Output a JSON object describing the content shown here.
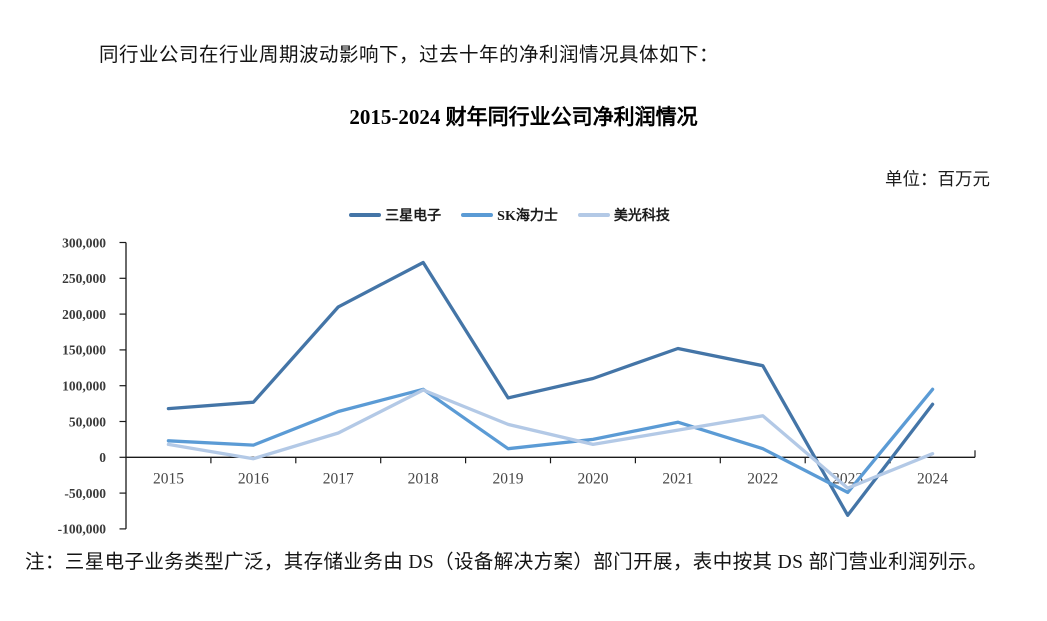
{
  "page": {
    "intro_text": "同行业公司在行业周期波动影响下，过去十年的净利润情况具体如下：",
    "chart_title": "2015-2024 财年同行业公司净利润情况",
    "unit_label": "单位：百万元",
    "note_text": "注：三星电子业务类型广泛，其存储业务由 DS（设备解决方案）部门开展，表中按其 DS 部门营业利润列示。"
  },
  "colors": {
    "samsung_line": "#4475A7",
    "skhynix_line": "#5B9BD5",
    "micron_line": "#B3C9E6",
    "axis_line": "#1a1a1a",
    "tick_text": "#3a3a3a"
  },
  "chart_data": {
    "type": "line",
    "title": "2015-2024 财年同行业公司净利润情况",
    "unit": "百万元",
    "categories": [
      "2015",
      "2016",
      "2017",
      "2018",
      "2019",
      "2020",
      "2021",
      "2022",
      "2023",
      "2024"
    ],
    "series": [
      {
        "name": "三星电子",
        "color": "#4475A7",
        "values": [
          68000,
          77000,
          210000,
          272000,
          83000,
          110000,
          152000,
          128000,
          -81000,
          74000
        ]
      },
      {
        "name": "SK海力士",
        "color": "#5B9BD5",
        "values": [
          23000,
          17000,
          64000,
          95000,
          12000,
          25000,
          49000,
          12000,
          -49000,
          95000
        ]
      },
      {
        "name": "美光科技",
        "color": "#B3C9E6",
        "values": [
          18000,
          -2000,
          34000,
          94000,
          46000,
          18000,
          38000,
          58000,
          -43000,
          5000
        ]
      }
    ],
    "xlabel": "",
    "ylabel": "",
    "ylim": [
      -100000,
      300000
    ],
    "ytick_step": 50000,
    "ytick_labels": [
      "300,000",
      "250,000",
      "200,000",
      "150,000",
      "100,000",
      "50,000",
      "0",
      "-50,000",
      "-100,000"
    ],
    "legend_position": "top",
    "grid": false
  }
}
